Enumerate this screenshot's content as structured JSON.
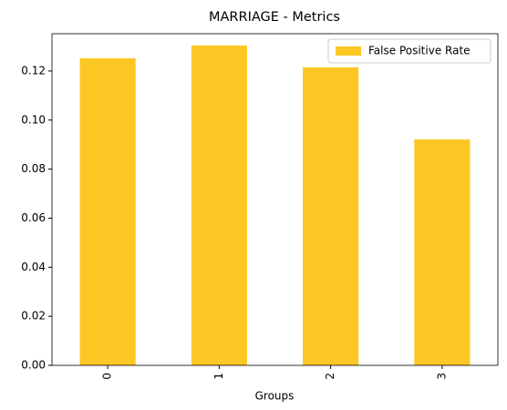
{
  "chart_data": {
    "type": "bar",
    "title": "MARRIAGE - Metrics",
    "xlabel": "Groups",
    "categories": [
      "0",
      "1",
      "2",
      "3"
    ],
    "series": [
      {
        "name": "False Positive Rate",
        "color": "#fcc624",
        "values": [
          0.1252,
          0.1304,
          0.1215,
          0.0921
        ]
      }
    ],
    "ylim": [
      0,
      0.1352
    ],
    "yticks": [
      {
        "value": 0,
        "label": "0.00"
      },
      {
        "value": 0.02,
        "label": "0.02"
      },
      {
        "value": 0.04,
        "label": "0.04"
      },
      {
        "value": 0.06,
        "label": "0.06"
      },
      {
        "value": 0.08,
        "label": "0.08"
      },
      {
        "value": 0.1,
        "label": "0.10"
      },
      {
        "value": 0.12,
        "label": "0.12"
      }
    ],
    "legend": "upper right"
  }
}
